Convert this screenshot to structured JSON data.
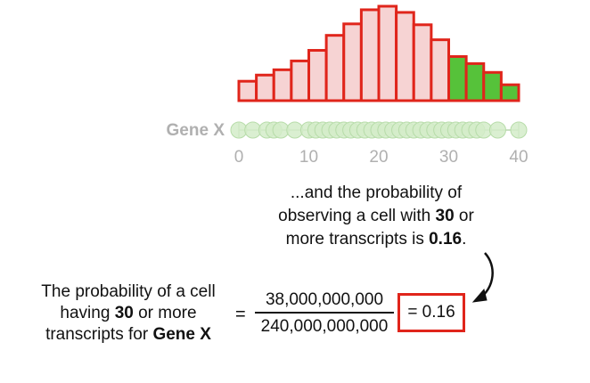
{
  "gene_label": "Gene X",
  "colors": {
    "bar_fill": "#f6d3d3",
    "bar_stroke": "#e0251b",
    "highlight_fill": "#56c23a",
    "dot_fill": "#d3ecc9",
    "dot_stroke": "#b7dca9",
    "axis": "#b8d4ae",
    "tick_label": "#b0b0b0"
  },
  "annotation": {
    "line1": "...and the probability of",
    "line2_pre": "observing a cell with ",
    "line2_bold": "30",
    "line2_post": " or",
    "line3_pre": "more transcripts is ",
    "line3_bold": "0.16",
    "line3_post": "."
  },
  "equation": {
    "left_line1": "The probability of a cell",
    "left_line2_pre": "having ",
    "left_line2_bold": "30",
    "left_line2_post": " or more",
    "left_line3_pre": "transcripts for ",
    "left_line3_bold": "Gene X",
    "equals": "=",
    "numerator": "38,000,000,000",
    "denominator": "240,000,000,000",
    "result": "= 0.16"
  },
  "chart_data": {
    "type": "bar",
    "x_ticks": [
      0,
      10,
      20,
      30,
      40
    ],
    "xlim": [
      0,
      40
    ],
    "bin_width": 2.5,
    "bin_starts": [
      0,
      2.5,
      5,
      7.5,
      10,
      12.5,
      15,
      17.5,
      20,
      22.5,
      25,
      27.5,
      30,
      32.5,
      35,
      37.5
    ],
    "values": [
      22,
      29,
      35,
      45,
      57,
      74,
      87,
      103,
      107,
      100,
      86,
      69,
      50,
      42,
      32,
      18
    ],
    "highlight_threshold": 30,
    "dots_x": [
      0,
      2,
      4,
      5,
      6,
      8,
      10,
      11,
      12,
      13,
      14,
      15,
      16,
      17,
      18,
      19,
      20,
      21,
      22,
      23,
      24,
      25,
      26,
      27,
      28,
      29,
      30,
      31,
      32,
      33,
      34,
      35,
      37,
      40
    ]
  }
}
